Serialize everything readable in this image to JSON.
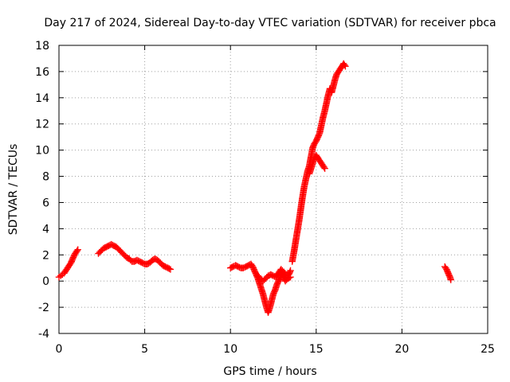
{
  "chart_data": {
    "type": "scatter",
    "title": "Day 217 of 2024, Sidereal Day-to-day VTEC variation (SDTVAR) for receiver pbca",
    "xlabel": "GPS time / hours",
    "ylabel": "SDTVAR / TECUs",
    "xlim": [
      0,
      25
    ],
    "ylim": [
      -4,
      18
    ],
    "xticks": [
      0,
      5,
      10,
      15,
      20,
      25
    ],
    "yticks": [
      -4,
      -2,
      0,
      2,
      4,
      6,
      8,
      10,
      12,
      14,
      16,
      18
    ],
    "xtick_labels": [
      "0",
      "5",
      "10",
      "15",
      "20",
      "25"
    ],
    "ytick_labels": [
      "-4",
      "-2",
      "0",
      "2",
      "4",
      "6",
      "8",
      "10",
      "12",
      "14",
      "16",
      "18"
    ],
    "grid": true,
    "marker": "plus",
    "color": "#ff0000",
    "series": [
      {
        "name": "SDTVAR",
        "segments": [
          [
            [
              0.0,
              0.3
            ],
            [
              0.1,
              0.4
            ],
            [
              0.2,
              0.5
            ],
            [
              0.3,
              0.6
            ],
            [
              0.4,
              0.8
            ],
            [
              0.5,
              1.0
            ],
            [
              0.6,
              1.2
            ],
            [
              0.7,
              1.4
            ],
            [
              0.8,
              1.7
            ],
            [
              0.9,
              2.0
            ],
            [
              1.0,
              2.2
            ],
            [
              1.1,
              2.4
            ]
          ],
          [
            [
              2.3,
              2.1
            ],
            [
              2.45,
              2.3
            ],
            [
              2.6,
              2.5
            ],
            [
              2.75,
              2.6
            ],
            [
              2.9,
              2.7
            ],
            [
              3.05,
              2.8
            ],
            [
              3.2,
              2.7
            ],
            [
              3.35,
              2.6
            ],
            [
              3.5,
              2.4
            ],
            [
              3.65,
              2.2
            ],
            [
              3.8,
              2.0
            ],
            [
              3.95,
              1.8
            ],
            [
              4.1,
              1.7
            ],
            [
              4.25,
              1.5
            ],
            [
              4.4,
              1.5
            ],
            [
              4.55,
              1.6
            ],
            [
              4.7,
              1.5
            ],
            [
              4.85,
              1.4
            ],
            [
              5.0,
              1.3
            ],
            [
              5.15,
              1.3
            ],
            [
              5.3,
              1.4
            ],
            [
              5.45,
              1.6
            ],
            [
              5.6,
              1.7
            ],
            [
              5.75,
              1.6
            ],
            [
              5.9,
              1.4
            ],
            [
              6.05,
              1.2
            ],
            [
              6.2,
              1.1
            ],
            [
              6.35,
              1.0
            ],
            [
              6.5,
              0.9
            ]
          ],
          [
            [
              10.0,
              1.0
            ],
            [
              10.15,
              1.1
            ],
            [
              10.3,
              1.2
            ],
            [
              10.45,
              1.1
            ],
            [
              10.6,
              1.0
            ],
            [
              10.75,
              1.0
            ],
            [
              10.9,
              1.1
            ],
            [
              11.05,
              1.2
            ],
            [
              11.2,
              1.3
            ],
            [
              11.3,
              1.1
            ],
            [
              11.4,
              0.8
            ],
            [
              11.5,
              0.5
            ],
            [
              11.6,
              0.2
            ],
            [
              11.7,
              -0.2
            ],
            [
              11.8,
              -0.6
            ],
            [
              11.9,
              -1.0
            ],
            [
              12.0,
              -1.5
            ],
            [
              12.1,
              -2.0
            ],
            [
              12.2,
              -2.4
            ],
            [
              12.3,
              -2.0
            ],
            [
              12.4,
              -1.5
            ],
            [
              12.5,
              -1.0
            ],
            [
              12.6,
              -0.7
            ],
            [
              12.7,
              -0.3
            ],
            [
              12.8,
              0.0
            ],
            [
              12.9,
              0.2
            ],
            [
              13.0,
              0.6
            ],
            [
              13.1,
              0.3
            ],
            [
              13.2,
              0.0
            ],
            [
              13.35,
              0.2
            ],
            [
              13.5,
              0.3
            ]
          ],
          [
            [
              11.6,
              0.4
            ],
            [
              11.75,
              0.2
            ],
            [
              11.9,
              0.0
            ],
            [
              12.05,
              0.2
            ],
            [
              12.2,
              0.4
            ],
            [
              12.35,
              0.5
            ],
            [
              12.5,
              0.4
            ],
            [
              12.65,
              0.3
            ],
            [
              12.8,
              0.6
            ],
            [
              12.95,
              0.9
            ],
            [
              13.1,
              0.7
            ],
            [
              13.25,
              0.4
            ],
            [
              13.4,
              0.5
            ],
            [
              13.5,
              0.8
            ]
          ],
          [
            [
              13.6,
              1.5
            ],
            [
              13.7,
              2.2
            ],
            [
              13.8,
              3.0
            ],
            [
              13.9,
              3.8
            ],
            [
              14.0,
              4.6
            ],
            [
              14.1,
              5.5
            ],
            [
              14.2,
              6.4
            ],
            [
              14.3,
              7.2
            ],
            [
              14.4,
              7.8
            ],
            [
              14.5,
              8.4
            ],
            [
              14.6,
              8.8
            ],
            [
              14.7,
              9.5
            ],
            [
              14.8,
              10.2
            ],
            [
              14.9,
              10.5
            ],
            [
              15.0,
              10.7
            ],
            [
              15.1,
              11.0
            ],
            [
              15.2,
              11.3
            ],
            [
              15.3,
              11.9
            ],
            [
              15.4,
              12.5
            ],
            [
              15.5,
              13.0
            ],
            [
              15.6,
              13.6
            ],
            [
              15.7,
              14.2
            ],
            [
              15.8,
              14.7
            ],
            [
              15.9,
              14.4
            ],
            [
              16.0,
              14.9
            ],
            [
              16.1,
              15.4
            ],
            [
              16.2,
              15.8
            ],
            [
              16.3,
              16.0
            ],
            [
              16.4,
              16.2
            ],
            [
              16.5,
              16.4
            ],
            [
              16.6,
              16.6
            ],
            [
              16.7,
              16.4
            ]
          ],
          [
            [
              14.6,
              8.2
            ],
            [
              14.7,
              8.6
            ],
            [
              14.8,
              9.0
            ],
            [
              14.9,
              9.4
            ],
            [
              15.0,
              9.6
            ],
            [
              15.1,
              9.4
            ],
            [
              15.2,
              9.2
            ],
            [
              15.3,
              9.0
            ],
            [
              15.4,
              8.8
            ],
            [
              15.5,
              8.6
            ]
          ],
          [
            [
              22.5,
              1.1
            ],
            [
              22.6,
              0.9
            ],
            [
              22.7,
              0.6
            ],
            [
              22.8,
              0.3
            ],
            [
              22.85,
              0.1
            ]
          ]
        ]
      }
    ]
  }
}
